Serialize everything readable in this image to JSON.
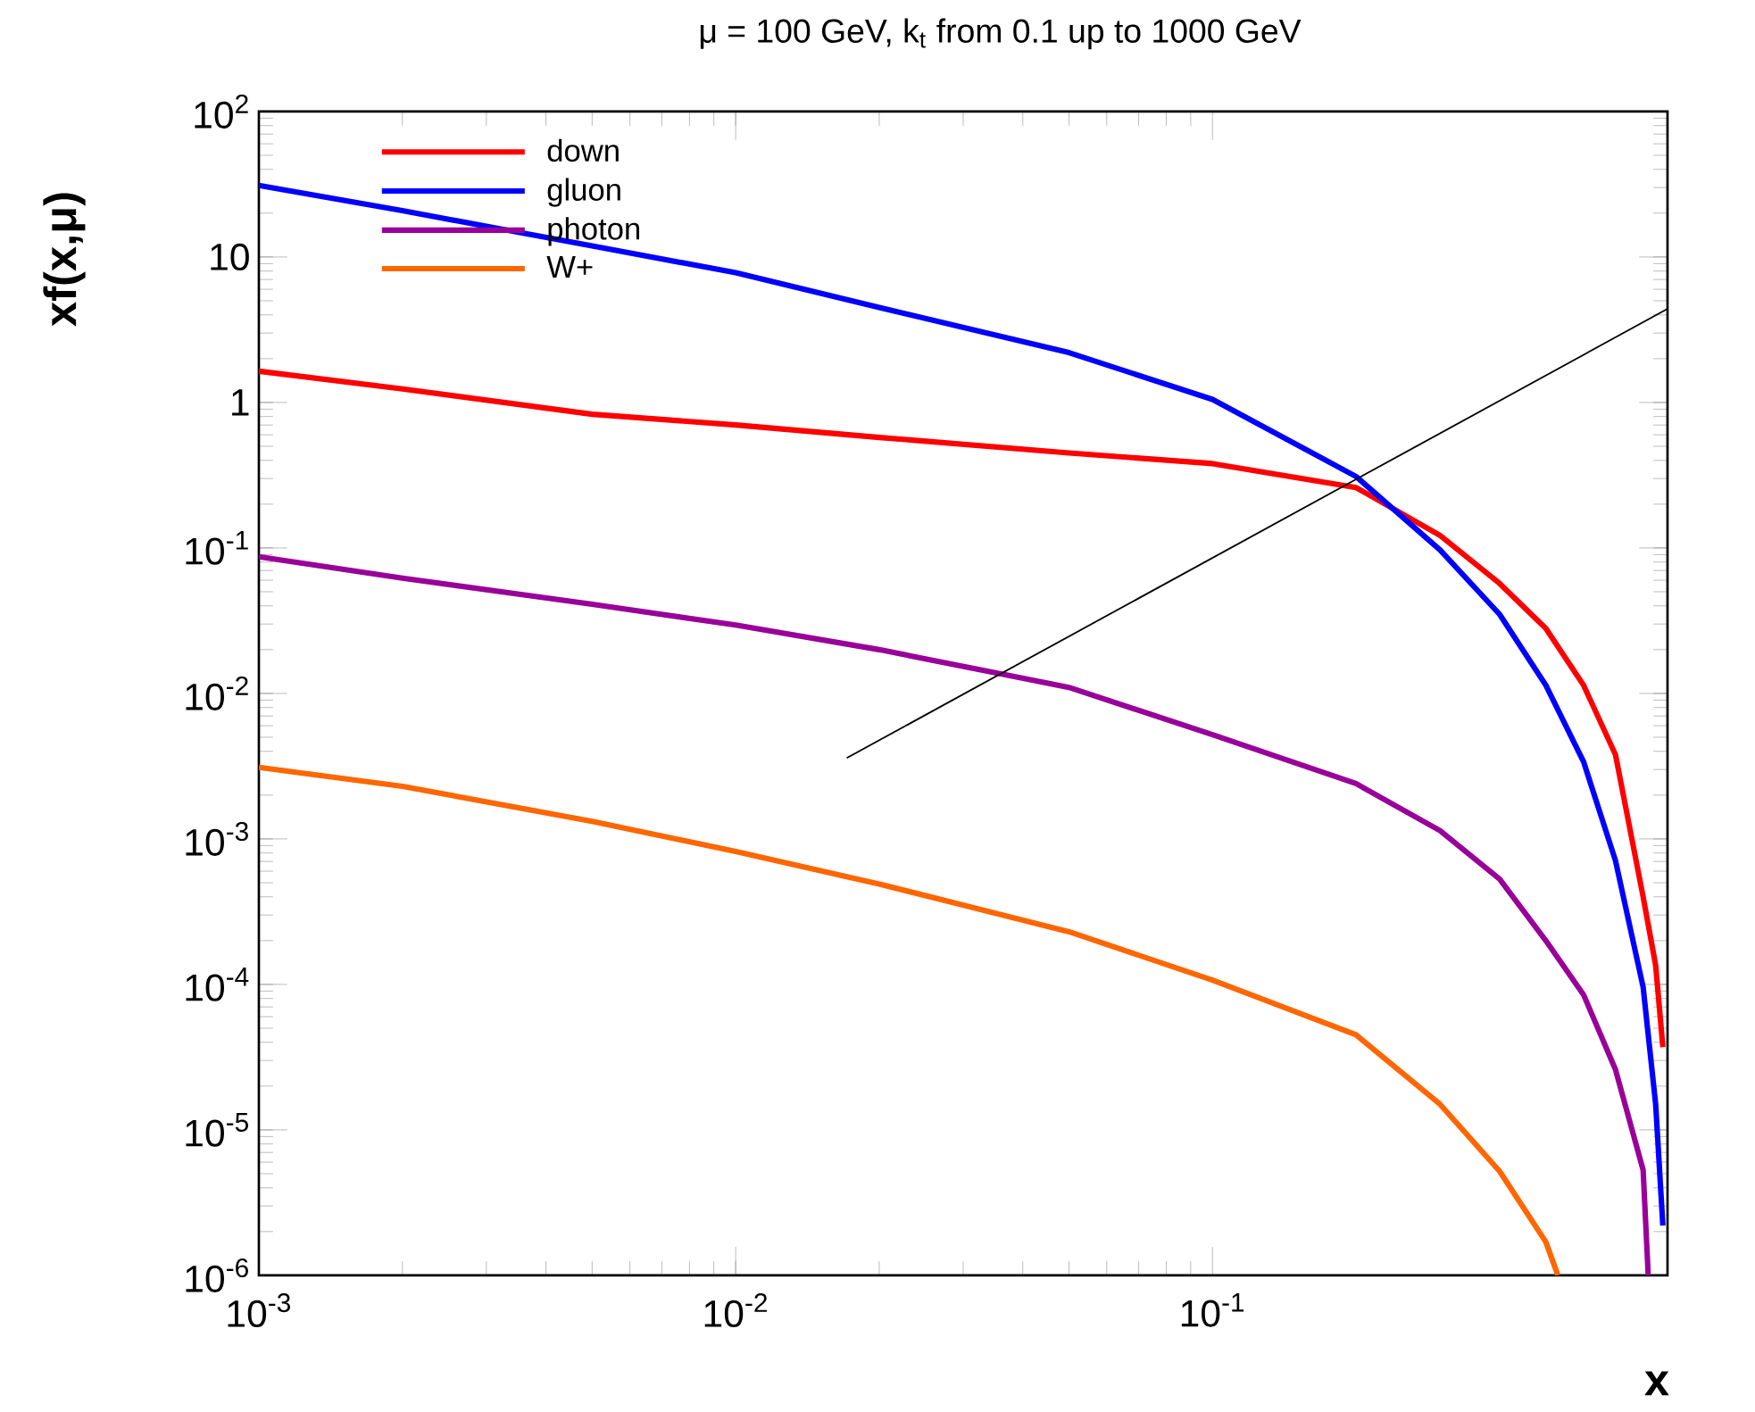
{
  "chart_data": {
    "type": "line",
    "title": "μ = 100 GeV, k$_{t}$ from 0.1 up to 1000 GeV",
    "xlabel": "x",
    "ylabel": "xf(x,μ)",
    "log": "xy",
    "legend": "top left",
    "grid": false,
    "xlim": [
      0.001,
      0.9
    ],
    "ylim": [
      1e-06,
      100
    ],
    "xticks": [
      {
        "value": 0.001,
        "label": "10$^{-3}$"
      },
      {
        "value": 0.01,
        "label": "10$^{-2}$"
      },
      {
        "value": 0.1,
        "label": "10$^{-1}$"
      }
    ],
    "yticks": [
      {
        "value": 1e-06,
        "label": "10$^{-6}$"
      },
      {
        "value": 1e-05,
        "label": "10$^{-5}$"
      },
      {
        "value": 0.0001,
        "label": "10$^{-4}$"
      },
      {
        "value": 0.001,
        "label": "10$^{-3}$"
      },
      {
        "value": 0.01,
        "label": "10$^{-2}$"
      },
      {
        "value": 0.1,
        "label": "10$^{-1}$"
      },
      1,
      10,
      {
        "value": 100,
        "label": "10$^{2}$"
      }
    ],
    "x": [
      0.001,
      0.002,
      0.005,
      0.01,
      0.02,
      0.05,
      0.1,
      0.2,
      0.3,
      0.4,
      0.5,
      0.6,
      0.7,
      0.8,
      0.85,
      0.88
    ],
    "series": [
      {
        "name": "down",
        "color": "#ff0000",
        "values": [
          1.64,
          1.24,
          0.83,
          0.7,
          0.575,
          0.45,
          0.38,
          0.26,
          0.122,
          0.057,
          0.028,
          0.0114,
          0.0038,
          0.0004,
          0.000135,
          3.7e-05
        ]
      },
      {
        "name": "gluon",
        "color": "#0000ff",
        "values": [
          31,
          20.8,
          11.9,
          7.8,
          4.5,
          2.2,
          1.05,
          0.31,
          0.097,
          0.035,
          0.0114,
          0.0034,
          0.00071,
          9.6e-05,
          1.5e-05,
          2.2e-06
        ]
      },
      {
        "name": "photon",
        "color": "#990099",
        "x": [
          0.001,
          0.002,
          0.005,
          0.01,
          0.02,
          0.05,
          0.1,
          0.2,
          0.3,
          0.4,
          0.5,
          0.6,
          0.7,
          0.8,
          0.82
        ],
        "values": [
          0.087,
          0.062,
          0.041,
          0.0295,
          0.02,
          0.011,
          0.0052,
          0.0024,
          0.00114,
          0.00053,
          0.0002,
          8.5e-05,
          2.6e-05,
          5.3e-06,
          1e-06
        ]
      },
      {
        "name": "W+",
        "color": "#ff6600",
        "x": [
          0.001,
          0.002,
          0.005,
          0.01,
          0.02,
          0.05,
          0.1,
          0.2,
          0.3,
          0.4,
          0.5,
          0.53
        ],
        "values": [
          0.0031,
          0.0023,
          0.00132,
          0.00082,
          0.00049,
          0.00023,
          0.000107,
          4.5e-05,
          1.5e-05,
          5.2e-06,
          1.7e-06,
          1e-06
        ]
      },
      {
        "color": "#000000",
        "x": [
          0.0171,
          0.9
        ],
        "values": [
          0.0036,
          4.4
        ]
      }
    ]
  }
}
